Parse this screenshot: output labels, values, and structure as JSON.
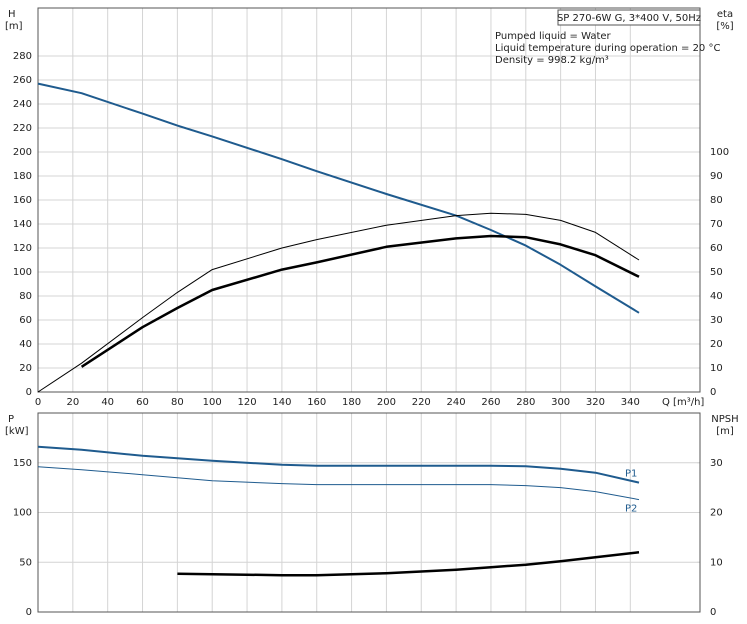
{
  "chart_data": [
    {
      "type": "line",
      "title": "SP 270-6W G, 3*400 V, 50Hz",
      "annotations": [
        "Pumped liquid = Water",
        "Liquid temperature during operation = 20 °C",
        "Density = 998.2 kg/m³"
      ],
      "xlabel": "Q [m³/h]",
      "ylabel": [
        "H",
        "[m]"
      ],
      "y2label": [
        "eta",
        "[%]"
      ],
      "x": [
        0,
        25,
        60,
        80,
        100,
        140,
        160,
        200,
        240,
        260,
        280,
        300,
        320,
        345
      ],
      "xlim": [
        0,
        380
      ],
      "xticks": [
        0,
        20,
        40,
        60,
        80,
        100,
        120,
        140,
        160,
        180,
        200,
        220,
        240,
        260,
        280,
        300,
        320,
        340
      ],
      "ylim": [
        0,
        320
      ],
      "yticks": [
        0,
        20,
        40,
        60,
        80,
        100,
        120,
        140,
        160,
        180,
        200,
        220,
        240,
        260,
        280
      ],
      "y2lim": [
        0,
        160
      ],
      "y2ticks": [
        0,
        10,
        20,
        30,
        40,
        50,
        60,
        70,
        80,
        90,
        100
      ],
      "grid": true,
      "series": [
        {
          "color": "#1f5b8e",
          "linewidth": 2,
          "values": [
            257,
            249,
            232,
            222,
            213,
            194,
            184,
            165,
            147,
            135,
            122,
            106,
            88,
            66
          ]
        },
        {
          "color": "#000000",
          "linewidth": 1,
          "axis": "y2",
          "values": [
            0,
            12,
            31,
            41.5,
            51,
            60,
            63.5,
            69.5,
            73.5,
            74.5,
            74,
            71.5,
            66.5,
            55
          ]
        },
        {
          "color": "#000000",
          "linewidth": 2.5,
          "axis": "y2",
          "values": [
            null,
            10.5,
            27,
            35,
            42.5,
            51,
            54,
            60.5,
            64,
            65,
            64.5,
            61.5,
            57,
            48
          ]
        }
      ]
    },
    {
      "type": "line",
      "ylabel": [
        "P",
        "[kW]"
      ],
      "y2label": [
        "NPSH",
        "[m]"
      ],
      "x": [
        0,
        25,
        60,
        80,
        100,
        140,
        160,
        200,
        240,
        260,
        280,
        300,
        320,
        345
      ],
      "xlim": [
        0,
        380
      ],
      "ylim": [
        0,
        200
      ],
      "yticks": [
        0,
        50,
        100,
        150
      ],
      "y2lim": [
        0,
        40
      ],
      "y2ticks": [
        0,
        10,
        20,
        30
      ],
      "grid": true,
      "series": [
        {
          "name": "P1",
          "color": "#1f5b8e",
          "linewidth": 2,
          "values": [
            166,
            163,
            157,
            154.5,
            152,
            148,
            147,
            147,
            147,
            147,
            146.5,
            144,
            140,
            130
          ]
        },
        {
          "name": "P2",
          "color": "#1f5b8e",
          "linewidth": 1,
          "values": [
            146,
            143,
            138,
            135,
            132,
            129,
            128,
            128,
            128,
            128,
            127,
            125,
            121,
            113
          ]
        },
        {
          "color": "#000000",
          "linewidth": 2.5,
          "axis": "y2",
          "values": [
            null,
            null,
            null,
            7.7,
            7.6,
            7.4,
            7.4,
            7.8,
            8.5,
            9,
            9.5,
            10.2,
            11,
            12
          ]
        }
      ]
    }
  ]
}
